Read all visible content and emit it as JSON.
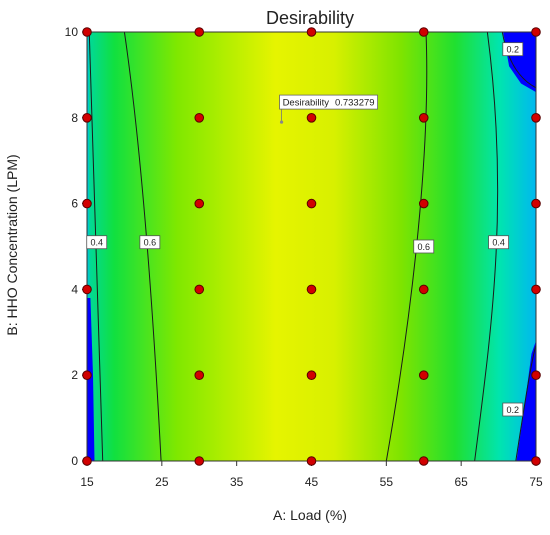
{
  "chart_data": {
    "type": "contour",
    "title": "Desirability",
    "xlabel": "A: Load (%)",
    "ylabel": "B: HHO Concentration (LPM)",
    "xlim": [
      15,
      75
    ],
    "ylim": [
      0,
      10
    ],
    "xticks": [
      15,
      25,
      35,
      45,
      55,
      65,
      75
    ],
    "yticks": [
      0,
      2,
      4,
      6,
      8,
      10
    ],
    "design_points": {
      "x": [
        15,
        30,
        45,
        60,
        75
      ],
      "y": [
        0,
        2,
        4,
        6,
        8,
        10
      ]
    },
    "contour_levels": [
      {
        "level": 0.2,
        "label": "0.2",
        "label_positions": [
          [
            71.9,
            1.2
          ],
          [
            71.9,
            9.6
          ]
        ]
      },
      {
        "level": 0.4,
        "label": "0.4",
        "label_positions": [
          [
            16.3,
            5.1
          ],
          [
            70.0,
            5.1
          ]
        ]
      },
      {
        "level": 0.6,
        "label": "0.6",
        "label_positions": [
          [
            23.4,
            5.1
          ],
          [
            60.0,
            5.0
          ]
        ]
      }
    ],
    "annotation": {
      "label": "Desirability",
      "value": "0.733279",
      "x": 41,
      "y": 7.9
    },
    "colors": {
      "low": "#0000ff",
      "mid_low": "#00e0e0",
      "mid": "#00ff00",
      "high": "#ffff00",
      "point_fill": "#d10000",
      "point_stroke": "#5a0000",
      "contour_line": "#1a1a1a"
    }
  }
}
